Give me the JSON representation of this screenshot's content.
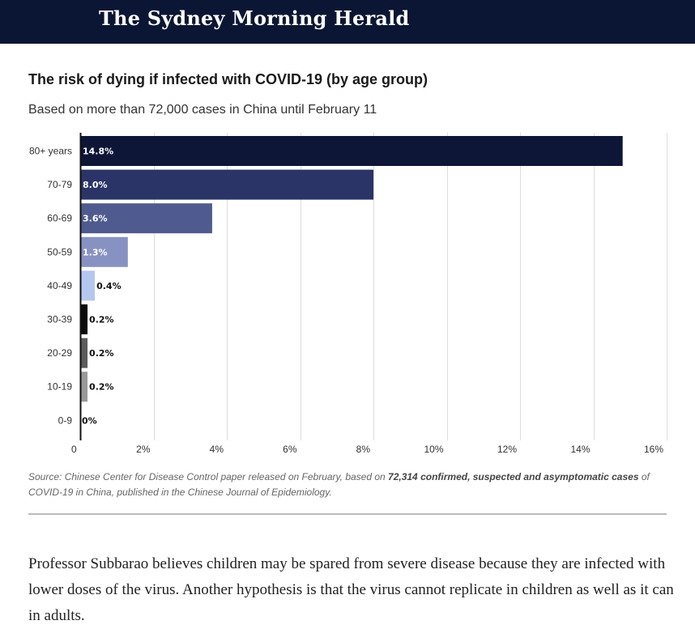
{
  "masthead": {
    "logo_text": "The Sydney Morning Herald"
  },
  "chart_data": {
    "type": "bar",
    "orientation": "horizontal",
    "title": "The risk of dying if infected with COVID-19 (by age group)",
    "subtitle": "Based on more than 72,000 cases in China until February 11",
    "categories": [
      "80+ years",
      "70-79",
      "60-69",
      "50-59",
      "40-49",
      "30-39",
      "20-29",
      "10-19",
      "0-9"
    ],
    "values": [
      14.8,
      8.0,
      3.6,
      1.3,
      0.4,
      0.2,
      0.2,
      0.2,
      0
    ],
    "value_labels": [
      "14.8%",
      "8.0%",
      "3.6%",
      "1.3%",
      "0.4%",
      "0.2%",
      "0.2%",
      "0.2%",
      "0%"
    ],
    "bar_colors": [
      "#0d1637",
      "#2b3466",
      "#4f5a8e",
      "#8892c2",
      "#b4c7ef",
      "#0a0a0a",
      "#5c5c5c",
      "#999999",
      "#cccccc"
    ],
    "label_inside": [
      true,
      true,
      true,
      true,
      false,
      false,
      false,
      false,
      false
    ],
    "x_ticks": [
      0,
      2,
      4,
      6,
      8,
      10,
      12,
      14,
      16
    ],
    "x_tick_labels": [
      "0",
      "2%",
      "4%",
      "6%",
      "8%",
      "10%",
      "12%",
      "14%",
      "16%"
    ],
    "xlim": [
      0,
      16
    ],
    "xlabel": "",
    "ylabel": "",
    "grid": true,
    "legend": "none"
  },
  "source": {
    "prefix": "Source: Chinese Center for Disease Control paper released on February, based on ",
    "bold": "72,314 confirmed, suspected and asymptomatic cases",
    "suffix": " of COVID-19 in China, published in the Chinese Journal of Epidemiology."
  },
  "article": {
    "paragraph": "Professor Subbarao believes children may be spared from severe disease because they are infected with lower doses of the virus. Another hypothesis is that the virus cannot replicate in children as well as it can in adults."
  }
}
